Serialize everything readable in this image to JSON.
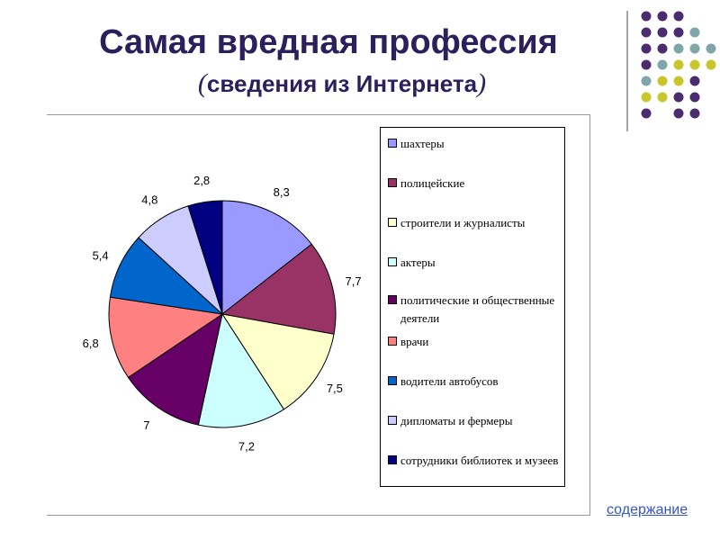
{
  "title": "Самая вредная профессия",
  "subtitle": {
    "open_paren": "(",
    "text": "сведения из Интернета",
    "close_paren": ")"
  },
  "toc_link": "содержание",
  "decor_colors": {
    "purple": "#4b2c6e",
    "teal": "#7fa7a9",
    "yellow": "#c8c62a",
    "line": "#a6a6a6"
  },
  "chart_data": {
    "type": "pie",
    "title": "",
    "categories": [
      "шахтеры",
      "полицейские",
      "строители и журналисты",
      "актеры",
      "политические и общественные деятели",
      "врачи",
      "водители автобусов",
      "дипломаты и фермеры",
      "сотрудники библиотек и музеев"
    ],
    "values": [
      8.3,
      7.7,
      7.5,
      7.2,
      7,
      6.8,
      5.4,
      4.8,
      2.8
    ],
    "value_labels": [
      "8,3",
      "7,7",
      "7,5",
      "7,2",
      "7",
      "6,8",
      "5,4",
      "4,8",
      "2,8"
    ],
    "colors": [
      "#9999ff",
      "#993366",
      "#ffffcc",
      "#ccffff",
      "#660066",
      "#ff8080",
      "#0066cc",
      "#ccccff",
      "#000080"
    ],
    "legend_position": "right"
  }
}
